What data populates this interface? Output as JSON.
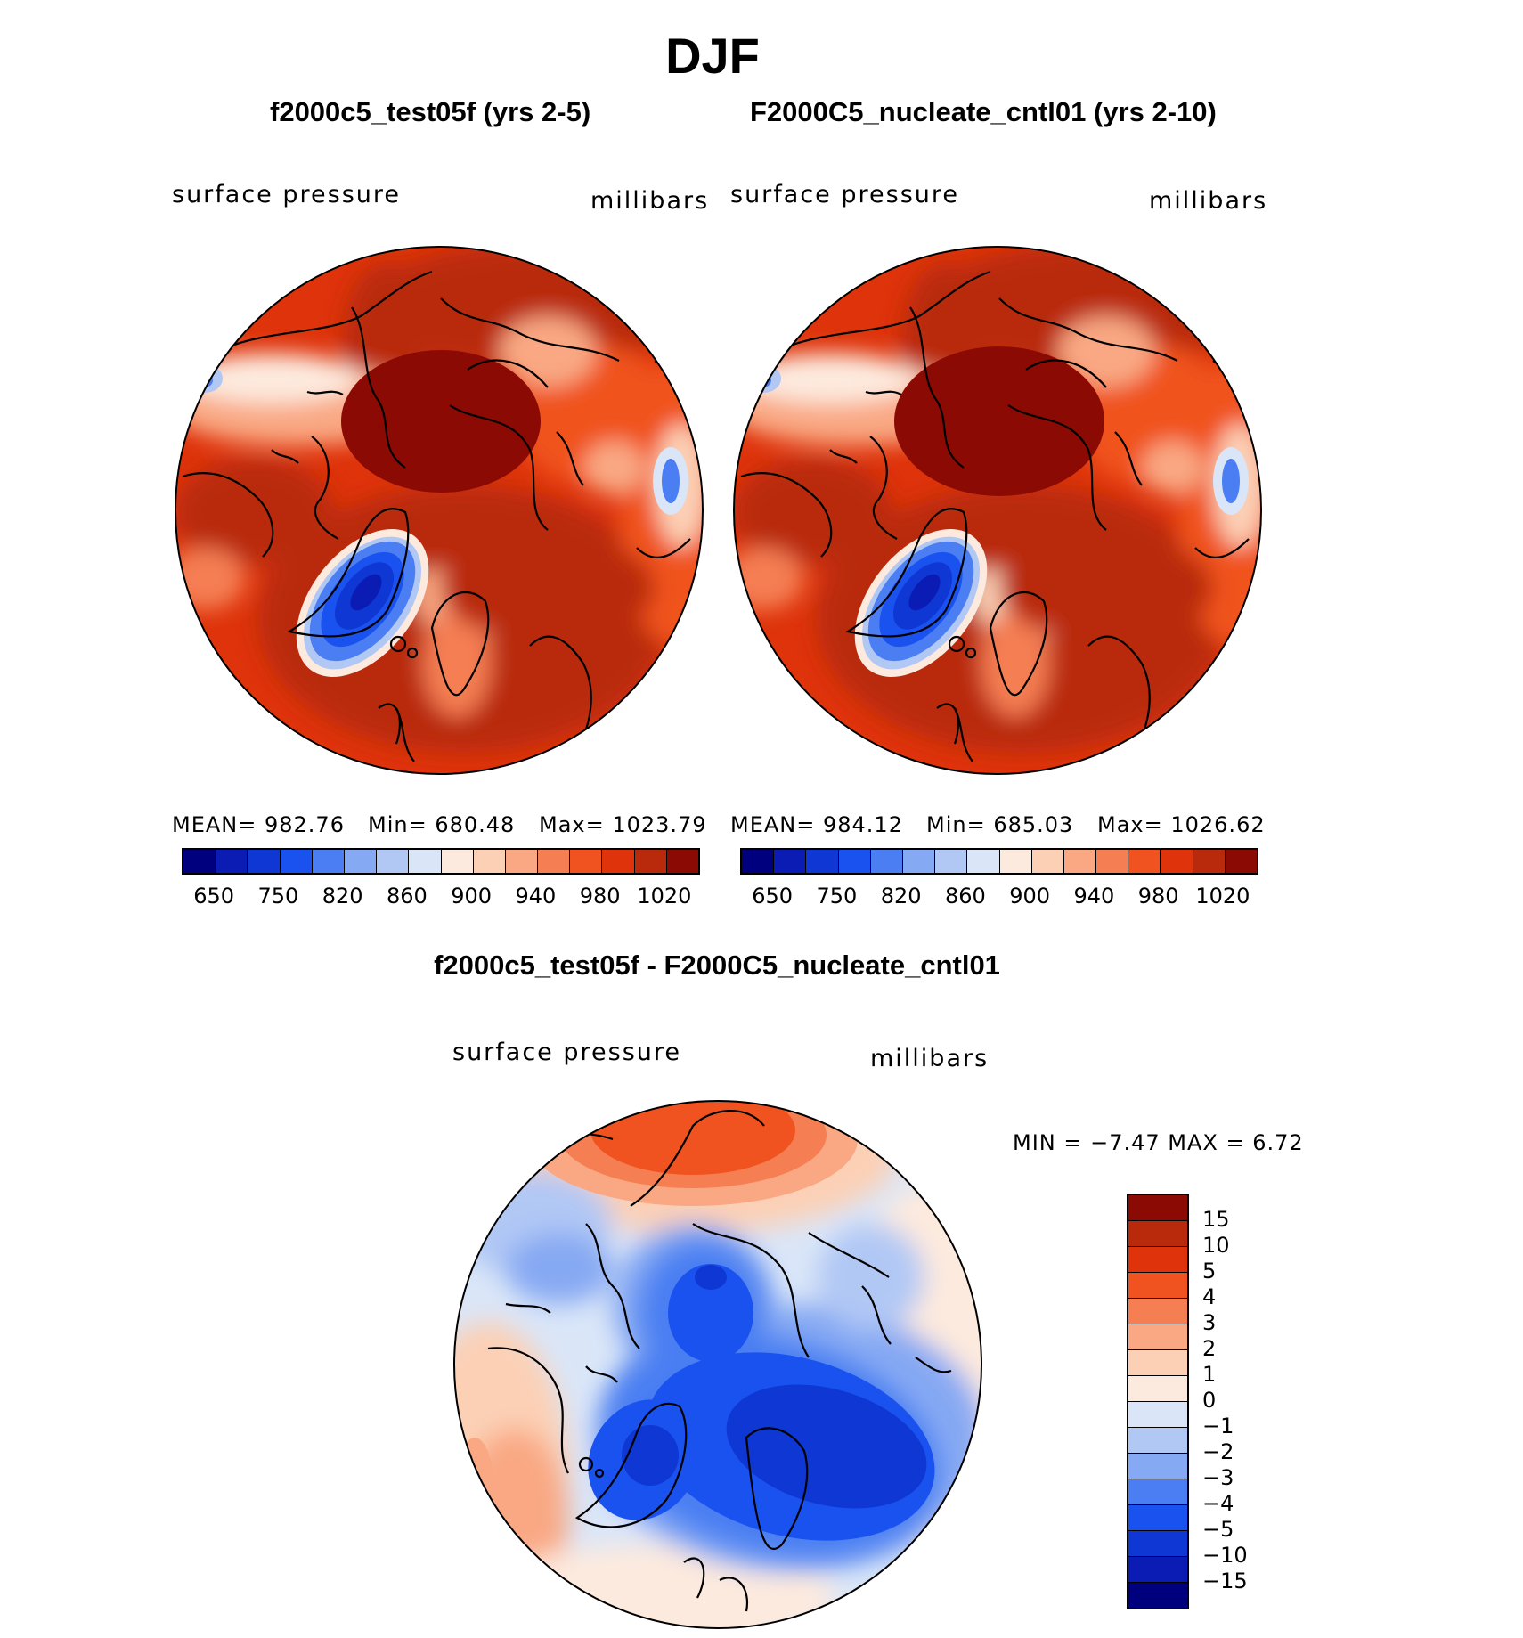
{
  "title": "DJF",
  "palette_abs": [
    "#00007e",
    "#0a1cb4",
    "#0f37d4",
    "#1a52ef",
    "#4a7ef2",
    "#86a9f3",
    "#b1c8f5",
    "#dae6f8",
    "#fdeade",
    "#fcd0b5",
    "#f9a883",
    "#f57e52",
    "#f0531f",
    "#de330b",
    "#b92a0c",
    "#8c0a04"
  ],
  "palette_diff": [
    "#8c0a04",
    "#b92a0c",
    "#de330b",
    "#f0531f",
    "#f57e52",
    "#f9a883",
    "#fcd0b5",
    "#fdeade",
    "#dae6f8",
    "#b1c8f5",
    "#86a9f3",
    "#4a7ef2",
    "#1a52ef",
    "#0f37d4",
    "#0a1cb4",
    "#00007e"
  ],
  "chart_data": [
    {
      "type": "heatmap",
      "projection": "polar stereographic (north)",
      "title": "f2000c5_test05f (yrs 2-5)",
      "variable_label": "surface pressure",
      "units_label": "millibars",
      "stats_mean": "MEAN=  982.76",
      "stats_min": "Min=  680.48",
      "stats_max": "Max=  1023.79",
      "colorbar_ticks": [
        "650",
        "750",
        "820",
        "860",
        "900",
        "940",
        "980",
        "1020"
      ]
    },
    {
      "type": "heatmap",
      "projection": "polar stereographic (north)",
      "title": "F2000C5_nucleate_cntl01 (yrs 2-10)",
      "variable_label": "surface pressure",
      "units_label": "millibars",
      "stats_mean": "MEAN=  984.12",
      "stats_min": "Min=  685.03",
      "stats_max": "Max=  1026.62",
      "colorbar_ticks": [
        "650",
        "750",
        "820",
        "860",
        "900",
        "940",
        "980",
        "1020"
      ]
    },
    {
      "type": "heatmap",
      "projection": "polar stereographic (north)",
      "title": "f2000c5_test05f - F2000C5_nucleate_cntl01",
      "variable_label": "surface pressure",
      "units_label": "millibars",
      "stats_text": "MIN =   −7.47  MAX =      6.72",
      "colorbar_ticks": [
        "15",
        "10",
        "5",
        "4",
        "3",
        "2",
        "1",
        "0",
        "−1",
        "−2",
        "−3",
        "−4",
        "−5",
        "−10",
        "−15"
      ]
    }
  ]
}
